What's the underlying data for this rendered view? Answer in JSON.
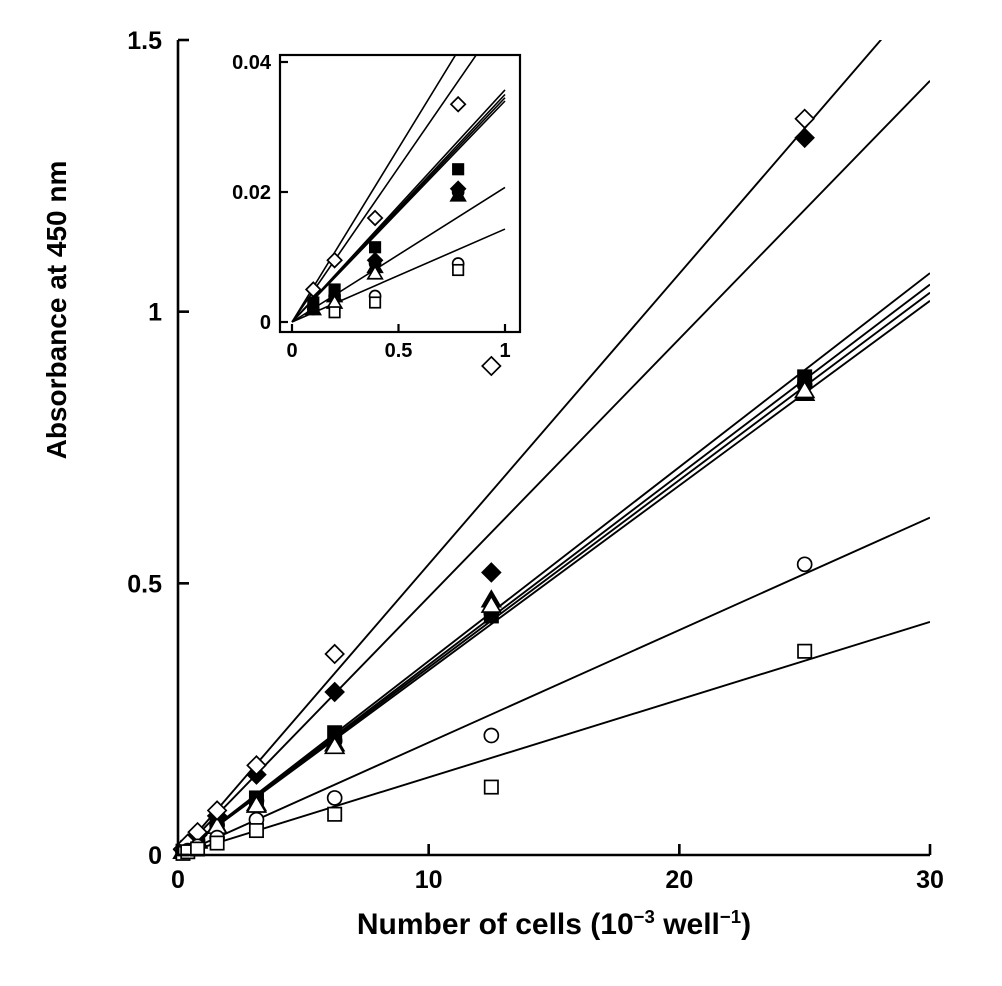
{
  "figure": {
    "background": "#ffffff",
    "ink": "#000000"
  },
  "chart_data": {
    "type": "scatter",
    "title": "",
    "xlabel": "Number of cells (10⁻³ well⁻¹)",
    "xlabel_parts": [
      {
        "t": "Number of cells (10"
      },
      {
        "t": "−3",
        "sup": true
      },
      {
        "t": " well"
      },
      {
        "t": "−1",
        "sup": true
      },
      {
        "t": ")"
      }
    ],
    "ylabel": "Absorbance at 450 nm",
    "fit_lines": "linear, through origin",
    "legend": "none",
    "grid": false,
    "main": {
      "xlim": [
        0,
        30
      ],
      "ylim": [
        0,
        1.5
      ],
      "xticks": [
        0,
        10,
        20,
        30
      ],
      "xtick_labels": [
        "0",
        "10",
        "20",
        "30"
      ],
      "yticks": [
        0,
        0.5,
        1,
        1.5
      ],
      "ytick_labels": [
        "0",
        "0.5",
        "1",
        "1.5"
      ]
    },
    "inset": {
      "xlim": [
        0,
        1
      ],
      "ylim": [
        0,
        0.04
      ],
      "xticks": [
        0,
        0.5,
        1
      ],
      "xtick_labels": [
        "0",
        "0.5",
        "1"
      ],
      "yticks": [
        0,
        0.02,
        0.04
      ],
      "ytick_labels": [
        "0",
        "0.02",
        "0.04"
      ]
    },
    "series": [
      {
        "name": "filled-diamond",
        "marker": "diamond",
        "filled": true,
        "slope": 0.0475,
        "points": [
          [
            0.2,
            0.01
          ],
          [
            0.39,
            0.019
          ],
          [
            0.78,
            0.037
          ],
          [
            1.56,
            0.072
          ],
          [
            3.13,
            0.148
          ],
          [
            6.25,
            0.3
          ],
          [
            12.5,
            0.52
          ],
          [
            25,
            1.32
          ]
        ],
        "inset_points": [
          [
            0.39,
            0.0095
          ],
          [
            0.78,
            0.0205
          ]
        ]
      },
      {
        "name": "filled-square",
        "marker": "square",
        "filled": true,
        "slope": 0.0357,
        "points": [
          [
            0.2,
            0.007
          ],
          [
            0.39,
            0.014
          ],
          [
            0.78,
            0.028
          ],
          [
            1.56,
            0.056
          ],
          [
            3.13,
            0.105
          ],
          [
            6.25,
            0.225
          ],
          [
            12.5,
            0.44
          ],
          [
            25,
            0.88
          ]
        ],
        "inset_points": [
          [
            0.1,
            0.003
          ],
          [
            0.2,
            0.005
          ],
          [
            0.39,
            0.0115
          ],
          [
            0.78,
            0.0235
          ]
        ]
      },
      {
        "name": "filled-circle",
        "marker": "circle",
        "filled": true,
        "slope": 0.035,
        "points": [
          [
            0.2,
            0.007
          ],
          [
            0.39,
            0.014
          ],
          [
            0.78,
            0.027
          ],
          [
            1.56,
            0.055
          ],
          [
            3.13,
            0.1
          ],
          [
            6.25,
            0.21
          ],
          [
            12.5,
            0.445
          ],
          [
            25,
            0.865
          ]
        ],
        "inset_points": [
          [
            0.1,
            0.002
          ],
          [
            0.2,
            0.004
          ],
          [
            0.39,
            0.009
          ],
          [
            0.78,
            0.02
          ]
        ]
      },
      {
        "name": "filled-triangle",
        "marker": "triangle",
        "filled": true,
        "slope": 0.0345,
        "points": [
          [
            0.2,
            0.007
          ],
          [
            0.39,
            0.013
          ],
          [
            0.78,
            0.027
          ],
          [
            1.56,
            0.054
          ],
          [
            3.13,
            0.095
          ],
          [
            6.25,
            0.205
          ],
          [
            12.5,
            0.47
          ],
          [
            25,
            0.85
          ]
        ],
        "inset_points": [
          [
            0.1,
            0.002
          ],
          [
            0.2,
            0.004
          ],
          [
            0.39,
            0.0085
          ],
          [
            0.78,
            0.0195
          ]
        ]
      },
      {
        "name": "open-triangle",
        "marker": "triangle",
        "filled": false,
        "slope": 0.034,
        "points": [
          [
            0.2,
            0.007
          ],
          [
            0.39,
            0.013
          ],
          [
            0.78,
            0.026
          ],
          [
            1.56,
            0.053
          ],
          [
            3.13,
            0.092
          ],
          [
            6.25,
            0.2
          ],
          [
            12.5,
            0.46
          ],
          [
            25,
            0.855
          ]
        ],
        "inset_points": [
          [
            0.2,
            0.003
          ],
          [
            0.39,
            0.0075
          ]
        ]
      },
      {
        "name": "open-diamond",
        "marker": "diamond",
        "filled": false,
        "slope": 0.0535,
        "points": [
          [
            0.2,
            0.011
          ],
          [
            0.39,
            0.021
          ],
          [
            0.78,
            0.042
          ],
          [
            1.56,
            0.082
          ],
          [
            3.13,
            0.165
          ],
          [
            6.25,
            0.37
          ],
          [
            12.5,
            0.9
          ],
          [
            25,
            1.355
          ]
        ],
        "inset_points": [
          [
            0.1,
            0.005
          ],
          [
            0.2,
            0.0095
          ],
          [
            0.39,
            0.016
          ],
          [
            0.78,
            0.0335
          ]
        ]
      },
      {
        "name": "open-circle",
        "marker": "circle",
        "filled": false,
        "slope": 0.0207,
        "points": [
          [
            0.2,
            0.004
          ],
          [
            0.39,
            0.008
          ],
          [
            0.78,
            0.016
          ],
          [
            1.56,
            0.032
          ],
          [
            3.13,
            0.065
          ],
          [
            6.25,
            0.105
          ],
          [
            12.5,
            0.22
          ],
          [
            25,
            0.535
          ]
        ],
        "inset_points": [
          [
            0.39,
            0.004
          ],
          [
            0.78,
            0.009
          ]
        ]
      },
      {
        "name": "open-square",
        "marker": "square",
        "filled": false,
        "slope": 0.0143,
        "points": [
          [
            0.2,
            0.003
          ],
          [
            0.39,
            0.006
          ],
          [
            0.78,
            0.011
          ],
          [
            1.56,
            0.022
          ],
          [
            3.13,
            0.045
          ],
          [
            6.25,
            0.075
          ],
          [
            12.5,
            0.125
          ],
          [
            25,
            0.375
          ]
        ],
        "inset_points": [
          [
            0.2,
            0.0015
          ],
          [
            0.39,
            0.003
          ],
          [
            0.78,
            0.008
          ]
        ]
      }
    ]
  }
}
